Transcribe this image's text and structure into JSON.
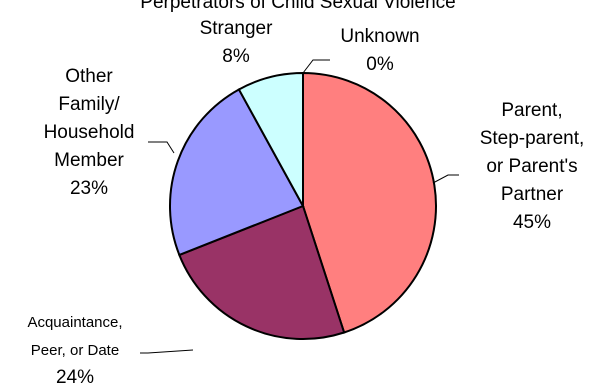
{
  "chart_data": {
    "type": "pie",
    "title": "Perpetrators of Child Sexual Violence",
    "slices": [
      {
        "label": "Parent, Step-parent, or Parent's Partner",
        "label_lines": [
          "Parent,",
          "Step-parent,",
          "or Parent's",
          "Partner"
        ],
        "value": 45,
        "value_text": "45%",
        "color": "#ff7f7f"
      },
      {
        "label": "Acquaintance, Peer, or Date",
        "label_lines": [
          "Acquaintance,",
          "Peer, or Date"
        ],
        "value": 24,
        "value_text": "24%",
        "color": "#993366"
      },
      {
        "label": "Other Family/ Household Member",
        "label_lines": [
          "Other",
          "Family/",
          "Household",
          "Member"
        ],
        "value": 23,
        "value_text": "23%",
        "color": "#9999ff"
      },
      {
        "label": "Stranger",
        "label_lines": [
          "Stranger"
        ],
        "value": 8,
        "value_text": "8%",
        "color": "#ccffff"
      },
      {
        "label": "Unknown",
        "label_lines": [
          "Unknown"
        ],
        "value": 0,
        "value_text": "0%",
        "color": "#ffffcc"
      }
    ],
    "start_angle_deg": 0,
    "direction": "clockwise",
    "legend": "none",
    "outline_color": "#000000"
  }
}
